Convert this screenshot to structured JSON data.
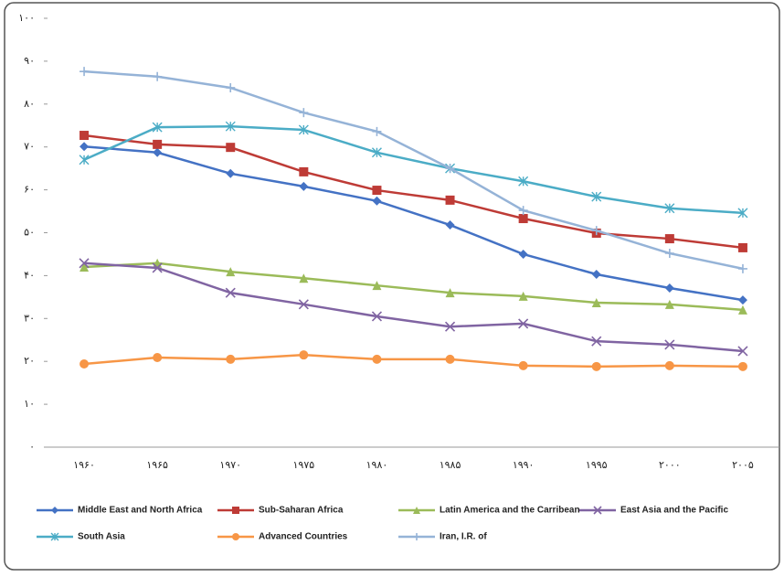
{
  "chart_data": {
    "type": "line",
    "categories": [
      "۱۹۶۰",
      "۱۹۶۵",
      "۱۹۷۰",
      "۱۹۷۵",
      "۱۹۸۰",
      "۱۹۸۵",
      "۱۹۹۰",
      "۱۹۹۵",
      "۲۰۰۰",
      "۲۰۰۵"
    ],
    "ylim": [
      0,
      100
    ],
    "yticks": [
      {
        "value": 0,
        "label": "۰"
      },
      {
        "value": 10,
        "label": "۱۰"
      },
      {
        "value": 20,
        "label": "۲۰"
      },
      {
        "value": 30,
        "label": "۳۰"
      },
      {
        "value": 40,
        "label": "۴۰"
      },
      {
        "value": 50,
        "label": "۵۰"
      },
      {
        "value": 60,
        "label": "۶۰"
      },
      {
        "value": 70,
        "label": "۷۰"
      },
      {
        "value": 80,
        "label": "۸۰"
      },
      {
        "value": 90,
        "label": "۹۰"
      },
      {
        "value": 100,
        "label": "۱۰۰"
      }
    ],
    "grid": false,
    "legend": "bottom",
    "series": [
      {
        "name": "Middle East and North Africa",
        "color": "#4472c4",
        "marker": "diamond",
        "values": [
          70.1,
          68.7,
          63.8,
          60.8,
          57.4,
          51.8,
          45,
          40.3,
          37.1,
          34.3
        ]
      },
      {
        "name": "Sub-Saharan Africa",
        "color": "#be3b36",
        "marker": "square",
        "values": [
          72.7,
          70.6,
          69.9,
          64.2,
          59.9,
          57.6,
          53.3,
          49.9,
          48.6,
          46.5
        ]
      },
      {
        "name": "Latin America and the Carribean",
        "color": "#9bbb59",
        "marker": "triangle",
        "values": [
          42,
          42.9,
          40.9,
          39.4,
          37.7,
          36,
          35.2,
          33.7,
          33.3,
          32
        ]
      },
      {
        "name": "East Asia and the Pacific",
        "color": "#8064a2",
        "marker": "x",
        "values": [
          42.9,
          41.8,
          36,
          33.3,
          30.5,
          28.1,
          28.8,
          24.7,
          23.9,
          22.4
        ]
      },
      {
        "name": "South Asia",
        "color": "#4bacc6",
        "marker": "star",
        "values": [
          67,
          74.6,
          74.8,
          74,
          68.7,
          65,
          62,
          58.4,
          55.7,
          54.6
        ]
      },
      {
        "name": "Advanced Countries",
        "color": "#f79646",
        "marker": "circle",
        "values": [
          19.4,
          20.9,
          20.5,
          21.5,
          20.5,
          20.5,
          19,
          18.8,
          19,
          18.8
        ]
      },
      {
        "name": "Iran, I.R. of",
        "color": "#95b3d7",
        "marker": "plus",
        "values": [
          87.6,
          86.4,
          83.8,
          78,
          73.6,
          65,
          55.2,
          50.5,
          45.2,
          41.6
        ]
      }
    ]
  }
}
